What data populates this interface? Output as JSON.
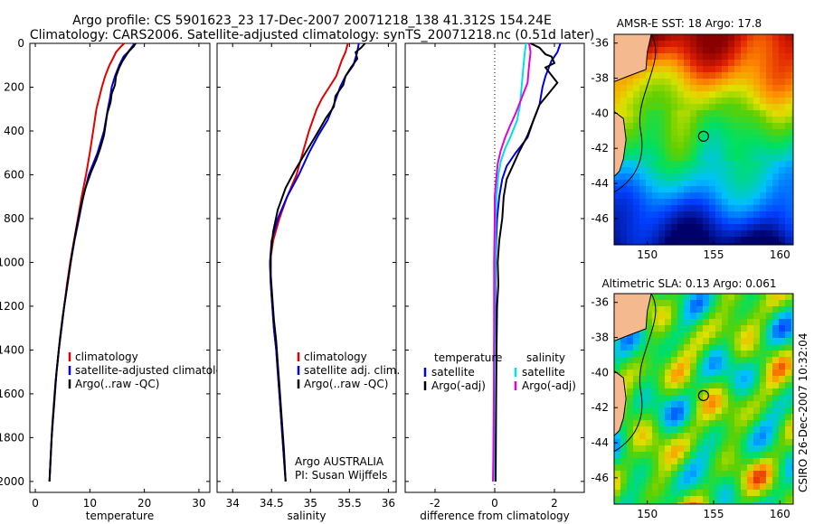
{
  "header": {
    "line1": "Argo profile: CS 5901623_23 17-Dec-2007 20071218_138 41.312S 154.24E",
    "line2": "Climatology: CARS2006. Satellite-adjusted climatology: synTS_20071218.nc (0.51d later)"
  },
  "colors": {
    "climatology": "#e00000",
    "satellite": "#0000e0",
    "argo": "#000000",
    "sat_salt": "#00e0e0",
    "argo_salt": "#e000e0"
  },
  "chart_data": [
    {
      "type": "line",
      "id": "temperature",
      "xlabel": "temperature",
      "ylabel": "",
      "xlim": [
        -1,
        32
      ],
      "ylim": [
        2050,
        0
      ],
      "xticks": [
        0,
        10,
        20,
        30
      ],
      "yticks": [
        0,
        200,
        400,
        600,
        800,
        1000,
        1200,
        1400,
        1600,
        1800,
        2000
      ],
      "legend": [
        "climatology",
        "satellite-adjusted climatology",
        "Argo(..raw -QC)"
      ],
      "series": [
        {
          "name": "climatology",
          "color": "#e00000",
          "points": [
            [
              16.3,
              0
            ],
            [
              15.5,
              20
            ],
            [
              14.8,
              40
            ],
            [
              14.2,
              70
            ],
            [
              13.6,
              100
            ],
            [
              12.8,
              150
            ],
            [
              12.2,
              200
            ],
            [
              11.7,
              250
            ],
            [
              11.2,
              300
            ],
            [
              10.6,
              400
            ],
            [
              10.0,
              500
            ],
            [
              9.3,
              600
            ],
            [
              8.5,
              700
            ],
            [
              7.8,
              800
            ],
            [
              7.1,
              900
            ],
            [
              6.4,
              1000
            ],
            [
              5.8,
              1100
            ],
            [
              5.3,
              1200
            ],
            [
              4.8,
              1300
            ],
            [
              4.3,
              1400
            ],
            [
              3.9,
              1500
            ],
            [
              3.6,
              1600
            ],
            [
              3.3,
              1700
            ],
            [
              3.0,
              1800
            ],
            [
              2.8,
              1900
            ],
            [
              2.6,
              2000
            ]
          ]
        },
        {
          "name": "satellite-adjusted climatology",
          "color": "#0000e0",
          "points": [
            [
              18.2,
              0
            ],
            [
              17.6,
              20
            ],
            [
              17.0,
              40
            ],
            [
              16.2,
              60
            ],
            [
              15.4,
              100
            ],
            [
              14.6,
              150
            ],
            [
              14.0,
              200
            ],
            [
              13.7,
              250
            ],
            [
              13.3,
              300
            ],
            [
              12.6,
              400
            ],
            [
              11.4,
              500
            ],
            [
              9.8,
              600
            ],
            [
              8.8,
              700
            ],
            [
              8.0,
              800
            ],
            [
              7.2,
              900
            ],
            [
              6.5,
              1000
            ],
            [
              5.9,
              1100
            ],
            [
              5.3,
              1200
            ],
            [
              4.8,
              1300
            ],
            [
              4.3,
              1400
            ],
            [
              3.9,
              1500
            ],
            [
              3.6,
              1600
            ],
            [
              3.3,
              1700
            ],
            [
              3.0,
              1800
            ],
            [
              2.8,
              1900
            ],
            [
              2.6,
              2000
            ]
          ]
        },
        {
          "name": "Argo(..raw -QC)",
          "color": "#000000",
          "points": [
            [
              18.4,
              0
            ],
            [
              18.0,
              15
            ],
            [
              17.2,
              35
            ],
            [
              16.8,
              50
            ],
            [
              16.0,
              80
            ],
            [
              15.4,
              110
            ],
            [
              14.8,
              150
            ],
            [
              14.6,
              190
            ],
            [
              14.0,
              230
            ],
            [
              13.8,
              270
            ],
            [
              13.2,
              320
            ],
            [
              12.9,
              370
            ],
            [
              12.6,
              420
            ],
            [
              11.9,
              480
            ],
            [
              11.2,
              530
            ],
            [
              10.2,
              590
            ],
            [
              9.2,
              660
            ],
            [
              8.3,
              750
            ],
            [
              7.5,
              850
            ],
            [
              6.8,
              950
            ],
            [
              6.2,
              1050
            ],
            [
              5.6,
              1150
            ],
            [
              5.0,
              1250
            ],
            [
              4.5,
              1350
            ],
            [
              4.1,
              1450
            ],
            [
              3.7,
              1550
            ],
            [
              3.4,
              1650
            ],
            [
              3.1,
              1750
            ],
            [
              2.9,
              1850
            ],
            [
              2.7,
              1950
            ],
            [
              2.6,
              2000
            ]
          ]
        }
      ]
    },
    {
      "type": "line",
      "id": "salinity",
      "xlabel": "salinity",
      "xlim": [
        33.8,
        36.1
      ],
      "ylim": [
        2050,
        0
      ],
      "xticks": [
        34,
        34.5,
        35,
        35.5,
        36
      ],
      "legend": [
        "climatology",
        "satellite adj. clim.",
        "Argo(..raw -QC)"
      ],
      "annotation": [
        "Argo AUSTRALIA",
        "PI: Susan Wijffels"
      ],
      "series": [
        {
          "name": "climatology",
          "color": "#e00000",
          "points": [
            [
              35.48,
              0
            ],
            [
              35.45,
              40
            ],
            [
              35.4,
              80
            ],
            [
              35.33,
              150
            ],
            [
              35.24,
              200
            ],
            [
              35.15,
              250
            ],
            [
              35.08,
              300
            ],
            [
              34.98,
              400
            ],
            [
              34.9,
              500
            ],
            [
              34.82,
              600
            ],
            [
              34.7,
              700
            ],
            [
              34.6,
              800
            ],
            [
              34.52,
              900
            ],
            [
              34.48,
              1000
            ],
            [
              34.49,
              1100
            ],
            [
              34.51,
              1200
            ],
            [
              34.53,
              1300
            ],
            [
              34.56,
              1400
            ],
            [
              34.58,
              1500
            ],
            [
              34.6,
              1600
            ],
            [
              34.62,
              1700
            ],
            [
              34.64,
              1800
            ],
            [
              34.66,
              1900
            ],
            [
              34.68,
              2000
            ]
          ]
        },
        {
          "name": "satellite adj. clim.",
          "color": "#0000e0",
          "points": [
            [
              35.62,
              0
            ],
            [
              35.6,
              40
            ],
            [
              35.55,
              100
            ],
            [
              35.45,
              150
            ],
            [
              35.38,
              200
            ],
            [
              35.3,
              280
            ],
            [
              35.22,
              350
            ],
            [
              35.1,
              420
            ],
            [
              34.98,
              500
            ],
            [
              34.85,
              600
            ],
            [
              34.7,
              700
            ],
            [
              34.58,
              800
            ],
            [
              34.5,
              900
            ],
            [
              34.48,
              1000
            ],
            [
              34.49,
              1100
            ],
            [
              34.51,
              1200
            ],
            [
              34.53,
              1300
            ],
            [
              34.56,
              1400
            ],
            [
              34.58,
              1500
            ],
            [
              34.6,
              1600
            ],
            [
              34.62,
              1700
            ],
            [
              34.64,
              1800
            ],
            [
              34.66,
              1900
            ],
            [
              34.68,
              2000
            ]
          ]
        },
        {
          "name": "Argo(..raw -QC)",
          "color": "#000000",
          "points": [
            [
              35.7,
              0
            ],
            [
              35.65,
              20
            ],
            [
              35.58,
              40
            ],
            [
              35.6,
              70
            ],
            [
              35.52,
              110
            ],
            [
              35.45,
              150
            ],
            [
              35.42,
              190
            ],
            [
              35.32,
              240
            ],
            [
              35.3,
              290
            ],
            [
              35.2,
              340
            ],
            [
              35.12,
              390
            ],
            [
              35.02,
              450
            ],
            [
              34.9,
              520
            ],
            [
              34.8,
              580
            ],
            [
              34.68,
              660
            ],
            [
              34.58,
              760
            ],
            [
              34.52,
              860
            ],
            [
              34.49,
              960
            ],
            [
              34.49,
              1060
            ],
            [
              34.51,
              1160
            ],
            [
              34.53,
              1260
            ],
            [
              34.56,
              1360
            ],
            [
              34.58,
              1460
            ],
            [
              34.6,
              1560
            ],
            [
              34.62,
              1660
            ],
            [
              34.64,
              1760
            ],
            [
              34.66,
              1860
            ],
            [
              34.68,
              2000
            ]
          ]
        }
      ]
    },
    {
      "type": "line",
      "id": "difference",
      "xlabel": "difference from climatology",
      "xlim": [
        -3,
        3
      ],
      "ylim": [
        2050,
        0
      ],
      "xticks": [
        -2,
        0,
        2
      ],
      "legend_left_title": "temperature",
      "legend_right_title": "salinity",
      "legend": [
        "satellite",
        "Argo(-adj)",
        "satellite",
        "Argo(-adj)"
      ],
      "series": [
        {
          "name": "satellite",
          "color": "#0000e0",
          "points": [
            [
              2.2,
              0
            ],
            [
              2.1,
              40
            ],
            [
              1.9,
              80
            ],
            [
              1.7,
              150
            ],
            [
              1.6,
              200
            ],
            [
              1.5,
              280
            ],
            [
              1.3,
              350
            ],
            [
              1.1,
              430
            ],
            [
              0.7,
              500
            ],
            [
              0.4,
              560
            ],
            [
              0.25,
              620
            ],
            [
              0.15,
              700
            ],
            [
              0.08,
              800
            ],
            [
              0.05,
              900
            ],
            [
              0.03,
              1000
            ],
            [
              0.02,
              1200
            ],
            [
              0.02,
              1500
            ],
            [
              0.02,
              1800
            ],
            [
              0.02,
              2000
            ]
          ]
        },
        {
          "name": "Argo(-adj)",
          "color": "#000000",
          "points": [
            [
              1.2,
              0
            ],
            [
              1.5,
              20
            ],
            [
              1.7,
              50
            ],
            [
              1.9,
              60
            ],
            [
              2.0,
              90
            ],
            [
              1.7,
              110
            ],
            [
              2.1,
              180
            ],
            [
              1.8,
              230
            ],
            [
              1.5,
              280
            ],
            [
              1.3,
              350
            ],
            [
              1.1,
              420
            ],
            [
              0.8,
              500
            ],
            [
              0.6,
              560
            ],
            [
              0.4,
              620
            ],
            [
              0.3,
              700
            ],
            [
              0.25,
              800
            ],
            [
              0.15,
              900
            ],
            [
              0.1,
              1000
            ],
            [
              0.12,
              1100
            ],
            [
              0.08,
              1200
            ],
            [
              0.06,
              1400
            ],
            [
              0.05,
              1600
            ],
            [
              0.04,
              1800
            ],
            [
              0.03,
              2000
            ]
          ]
        },
        {
          "name": "satellite",
          "color": "#00e0e0",
          "points": [
            [
              1.05,
              0
            ],
            [
              1.0,
              50
            ],
            [
              0.95,
              120
            ],
            [
              0.9,
              200
            ],
            [
              0.85,
              280
            ],
            [
              0.75,
              350
            ],
            [
              0.55,
              420
            ],
            [
              0.35,
              480
            ],
            [
              0.2,
              540
            ],
            [
              0.12,
              600
            ],
            [
              0.06,
              700
            ],
            [
              0.03,
              800
            ],
            [
              0.02,
              1000
            ],
            [
              0.0,
              1200
            ],
            [
              0.0,
              1500
            ],
            [
              -0.02,
              1800
            ],
            [
              -0.03,
              2000
            ]
          ]
        },
        {
          "name": "Argo(-adj)",
          "color": "#e000e0",
          "points": [
            [
              1.15,
              0
            ],
            [
              1.2,
              40
            ],
            [
              1.15,
              100
            ],
            [
              1.1,
              180
            ],
            [
              0.9,
              250
            ],
            [
              0.7,
              320
            ],
            [
              0.5,
              380
            ],
            [
              0.35,
              430
            ],
            [
              0.2,
              490
            ],
            [
              0.1,
              550
            ],
            [
              0.05,
              620
            ],
            [
              0.0,
              700
            ],
            [
              0.0,
              800
            ],
            [
              -0.02,
              1000
            ],
            [
              -0.02,
              1300
            ],
            [
              -0.03,
              1600
            ],
            [
              -0.05,
              1900
            ],
            [
              -0.06,
              2000
            ]
          ]
        }
      ]
    },
    {
      "type": "heatmap",
      "id": "sst_map",
      "title": "AMSR-E SST: 18 Argo: 17.8",
      "xticks": [
        150,
        155,
        160
      ],
      "yticks": [
        -36,
        -38,
        -40,
        -42,
        -44,
        -46
      ],
      "xlim": [
        147.5,
        161
      ],
      "ylim": [
        -47.5,
        -35.5
      ],
      "marker": [
        154.24,
        -41.312
      ]
    },
    {
      "type": "heatmap",
      "id": "sla_map",
      "title": "Altimetric SLA: 0.13 Argo: 0.061",
      "xticks": [
        150,
        155,
        160
      ],
      "yticks": [
        -36,
        -38,
        -40,
        -42,
        -44,
        -46
      ],
      "xlim": [
        147.5,
        161
      ],
      "ylim": [
        -47.5,
        -35.5
      ],
      "marker": [
        154.24,
        -41.312
      ]
    }
  ],
  "side_label": "CSIRO 26-Dec-2007 10:32:04"
}
